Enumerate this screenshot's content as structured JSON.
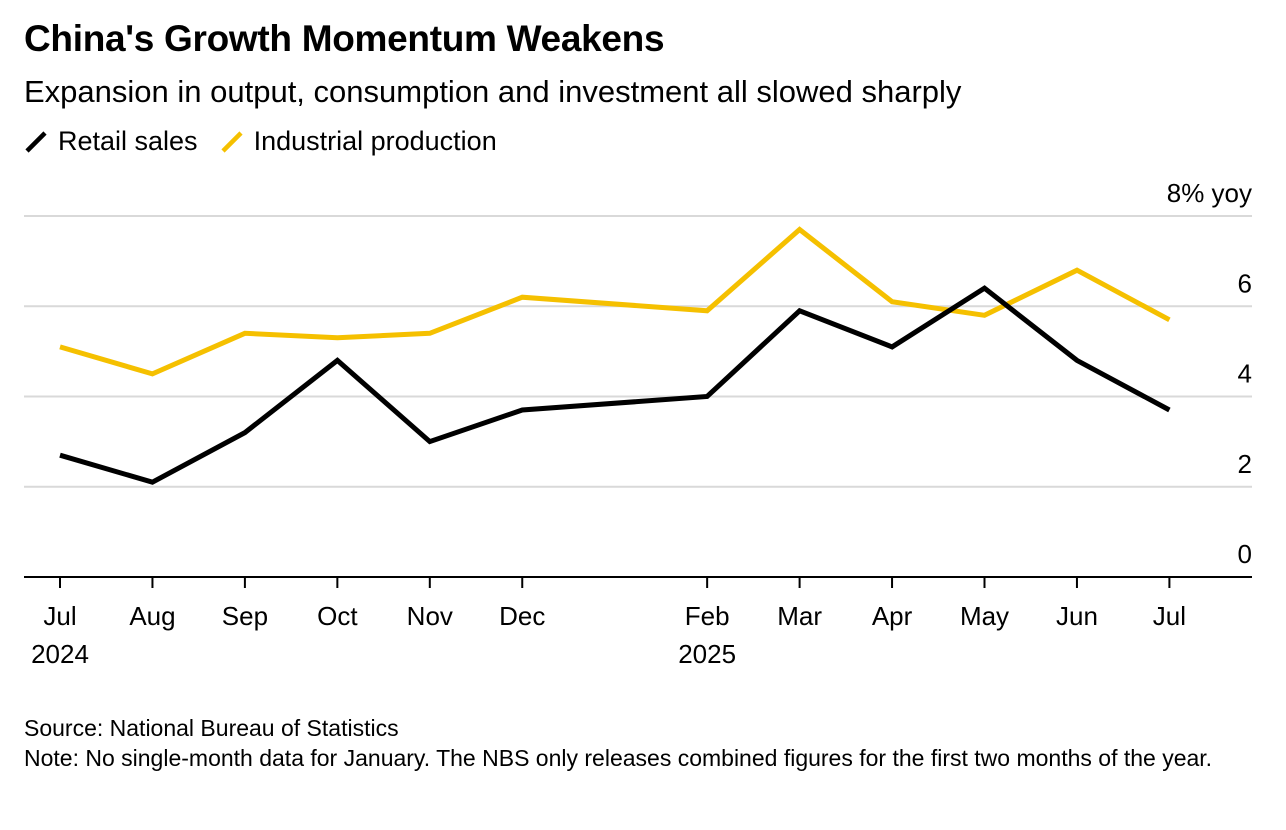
{
  "header": {
    "title": "China's Growth Momentum Weakens",
    "subtitle": "Expansion in output, consumption and investment all slowed sharply"
  },
  "footer": {
    "source": "Source: National Bureau of Statistics",
    "note": "Note: No single-month data for January. The NBS only releases combined figures for the first two months of the year."
  },
  "chart_data": {
    "type": "line",
    "title": "China's Growth Momentum Weakens",
    "subtitle": "Expansion in output, consumption and investment all slowed sharply",
    "x": [
      "2024-07",
      "2024-08",
      "2024-09",
      "2024-10",
      "2024-11",
      "2024-12",
      "2025-02",
      "2025-03",
      "2025-04",
      "2025-05",
      "2025-06",
      "2025-07"
    ],
    "x_tick_labels": [
      {
        "month": "Jul",
        "year": "2024"
      },
      {
        "month": "Aug",
        "year": ""
      },
      {
        "month": "Sep",
        "year": ""
      },
      {
        "month": "Oct",
        "year": ""
      },
      {
        "month": "Nov",
        "year": ""
      },
      {
        "month": "Dec",
        "year": ""
      },
      {
        "month": "Feb",
        "year": "2025"
      },
      {
        "month": "Mar",
        "year": ""
      },
      {
        "month": "Apr",
        "year": ""
      },
      {
        "month": "May",
        "year": ""
      },
      {
        "month": "Jun",
        "year": ""
      },
      {
        "month": "Jul",
        "year": ""
      }
    ],
    "series": [
      {
        "name": "Retail sales",
        "color": "#000000",
        "values": [
          2.7,
          2.1,
          3.2,
          4.8,
          3.0,
          3.7,
          4.0,
          5.9,
          5.1,
          6.4,
          4.8,
          3.7
        ]
      },
      {
        "name": "Industrial production",
        "color": "#f5c000",
        "values": [
          5.1,
          4.5,
          5.4,
          5.3,
          5.4,
          6.2,
          5.9,
          7.7,
          6.1,
          5.8,
          6.8,
          5.7
        ]
      }
    ],
    "y_unit_label": "8% yoy",
    "y_ticks": [
      0,
      2,
      4,
      6,
      8
    ],
    "y_tick_labels": [
      "0",
      "2",
      "4",
      "6",
      "8% yoy"
    ],
    "ylim": [
      0,
      8
    ],
    "grid": true,
    "legend": "top-left"
  }
}
